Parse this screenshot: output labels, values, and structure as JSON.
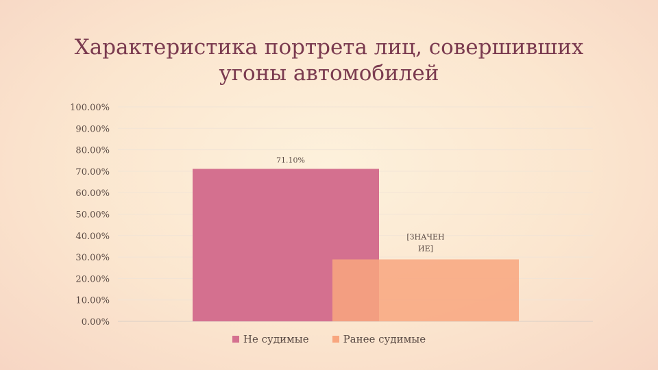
{
  "title_line1": "Характеристика портрета лиц, совершивших",
  "title_line2": "угоны автомобилей",
  "chart_data": {
    "type": "bar",
    "y_ticks": [
      "100.00%",
      "90.00%",
      "80.00%",
      "70.00%",
      "60.00%",
      "50.00%",
      "40.00%",
      "30.00%",
      "20.00%",
      "10.00%",
      "0.00%"
    ],
    "ylim": [
      0,
      100
    ],
    "grid": true,
    "legend_position": "bottom",
    "series": [
      {
        "name": "Не судимые",
        "value": 71.1,
        "label": "71.10%",
        "color": "#d4708f"
      },
      {
        "name": "Ранее судимые",
        "value": 28.9,
        "label_lines": [
          "[ЗНАЧЕН",
          "ИЕ]"
        ],
        "color": "#f8a67f"
      }
    ]
  }
}
